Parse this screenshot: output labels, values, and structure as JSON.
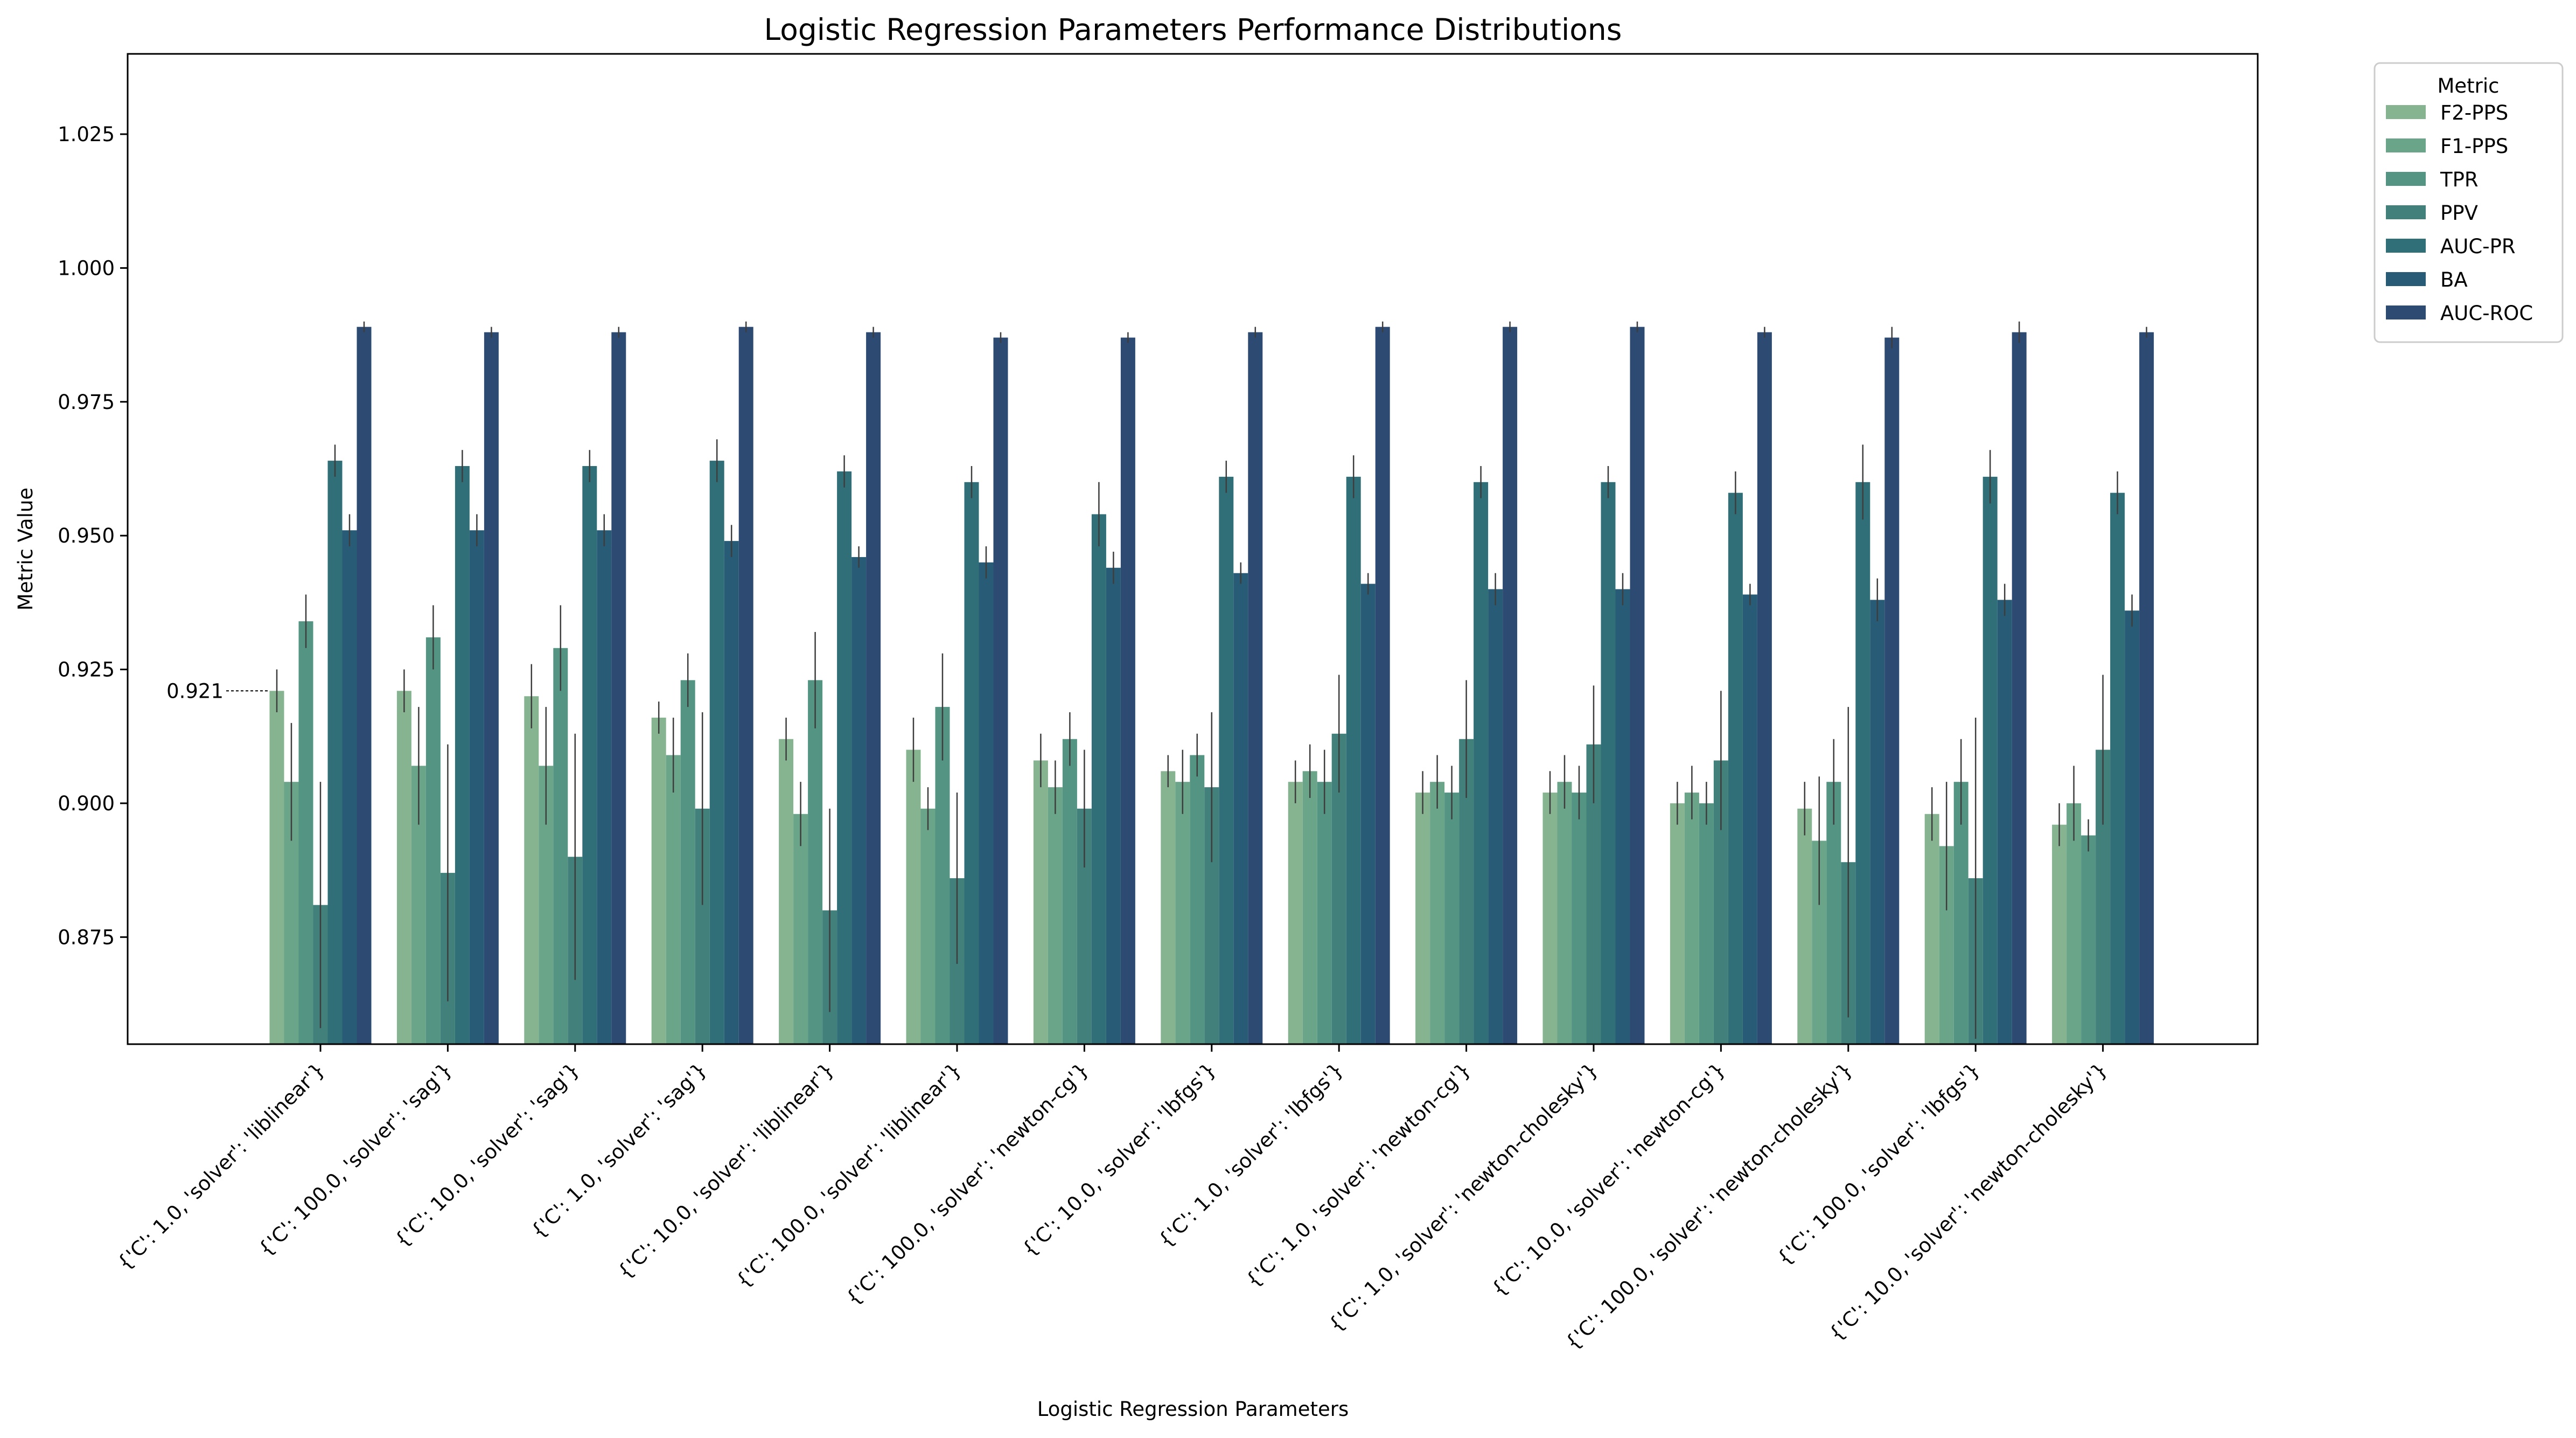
{
  "chart_data": {
    "type": "bar",
    "title": "Logistic Regression Parameters Performance Distributions",
    "xlabel": "Logistic Regression Parameters",
    "ylabel": "Metric Value",
    "ylim": [
      0.855,
      1.04
    ],
    "yticks": [
      "0.875",
      "0.900",
      "0.925",
      "0.950",
      "0.975",
      "1.000",
      "1.025"
    ],
    "grid": false,
    "legend": {
      "title": "Metric",
      "placement": "outside-top-right"
    },
    "annotation": {
      "text": "0.921",
      "target_series": "F2-PPS",
      "target_category_index": 0
    },
    "categories": [
      "{'C': 1.0, 'solver': 'liblinear'}",
      "{'C': 100.0, 'solver': 'sag'}",
      "{'C': 10.0, 'solver': 'sag'}",
      "{'C': 1.0, 'solver': 'sag'}",
      "{'C': 10.0, 'solver': 'liblinear'}",
      "{'C': 100.0, 'solver': 'liblinear'}",
      "{'C': 100.0, 'solver': 'newton-cg'}",
      "{'C': 10.0, 'solver': 'lbfgs'}",
      "{'C': 1.0, 'solver': 'lbfgs'}",
      "{'C': 1.0, 'solver': 'newton-cg'}",
      "{'C': 1.0, 'solver': 'newton-cholesky'}",
      "{'C': 10.0, 'solver': 'newton-cg'}",
      "{'C': 100.0, 'solver': 'newton-cholesky'}",
      "{'C': 100.0, 'solver': 'lbfgs'}",
      "{'C': 10.0, 'solver': 'newton-cholesky'}"
    ],
    "series": [
      {
        "name": "F2-PPS",
        "color": "#86b491",
        "values": [
          0.921,
          0.921,
          0.92,
          0.916,
          0.912,
          0.91,
          0.908,
          0.906,
          0.904,
          0.902,
          0.902,
          0.9,
          0.899,
          0.898,
          0.896
        ],
        "err": [
          0.004,
          0.004,
          0.006,
          0.003,
          0.004,
          0.006,
          0.005,
          0.003,
          0.004,
          0.004,
          0.004,
          0.004,
          0.005,
          0.005,
          0.004
        ]
      },
      {
        "name": "F1-PPS",
        "color": "#6aa58a",
        "values": [
          0.904,
          0.907,
          0.907,
          0.909,
          0.898,
          0.899,
          0.903,
          0.904,
          0.906,
          0.904,
          0.904,
          0.902,
          0.893,
          0.892,
          0.9
        ],
        "err": [
          0.011,
          0.011,
          0.011,
          0.007,
          0.006,
          0.004,
          0.005,
          0.006,
          0.005,
          0.005,
          0.005,
          0.005,
          0.012,
          0.012,
          0.007
        ]
      },
      {
        "name": "TPR",
        "color": "#549483",
        "values": [
          0.934,
          0.931,
          0.929,
          0.923,
          0.923,
          0.918,
          0.912,
          0.909,
          0.904,
          0.902,
          0.902,
          0.9,
          0.904,
          0.904,
          0.894
        ],
        "err": [
          0.005,
          0.006,
          0.008,
          0.005,
          0.009,
          0.01,
          0.005,
          0.004,
          0.006,
          0.005,
          0.005,
          0.004,
          0.008,
          0.008,
          0.003
        ]
      },
      {
        "name": "PPV",
        "color": "#42807b",
        "values": [
          0.881,
          0.887,
          0.89,
          0.899,
          0.88,
          0.886,
          0.899,
          0.903,
          0.913,
          0.912,
          0.911,
          0.908,
          0.889,
          0.886,
          0.91
        ],
        "err": [
          0.023,
          0.024,
          0.023,
          0.018,
          0.019,
          0.016,
          0.011,
          0.014,
          0.011,
          0.011,
          0.011,
          0.013,
          0.029,
          0.03,
          0.014
        ]
      },
      {
        "name": "AUC-PR",
        "color": "#316f78",
        "values": [
          0.964,
          0.963,
          0.963,
          0.964,
          0.962,
          0.96,
          0.954,
          0.961,
          0.961,
          0.96,
          0.96,
          0.958,
          0.96,
          0.961,
          0.958
        ],
        "err": [
          0.003,
          0.003,
          0.003,
          0.004,
          0.003,
          0.003,
          0.006,
          0.003,
          0.004,
          0.003,
          0.003,
          0.004,
          0.007,
          0.005,
          0.004
        ]
      },
      {
        "name": "BA",
        "color": "#285c76",
        "values": [
          0.951,
          0.951,
          0.951,
          0.949,
          0.946,
          0.945,
          0.944,
          0.943,
          0.941,
          0.94,
          0.94,
          0.939,
          0.938,
          0.938,
          0.936
        ],
        "err": [
          0.003,
          0.003,
          0.003,
          0.003,
          0.002,
          0.003,
          0.003,
          0.002,
          0.002,
          0.003,
          0.003,
          0.002,
          0.004,
          0.003,
          0.003
        ]
      },
      {
        "name": "AUC-ROC",
        "color": "#2d4a72",
        "values": [
          0.989,
          0.988,
          0.988,
          0.989,
          0.988,
          0.987,
          0.987,
          0.988,
          0.989,
          0.989,
          0.989,
          0.988,
          0.987,
          0.988,
          0.988
        ],
        "err": [
          0.001,
          0.001,
          0.001,
          0.001,
          0.001,
          0.001,
          0.001,
          0.001,
          0.001,
          0.001,
          0.001,
          0.001,
          0.002,
          0.002,
          0.001
        ]
      }
    ]
  }
}
